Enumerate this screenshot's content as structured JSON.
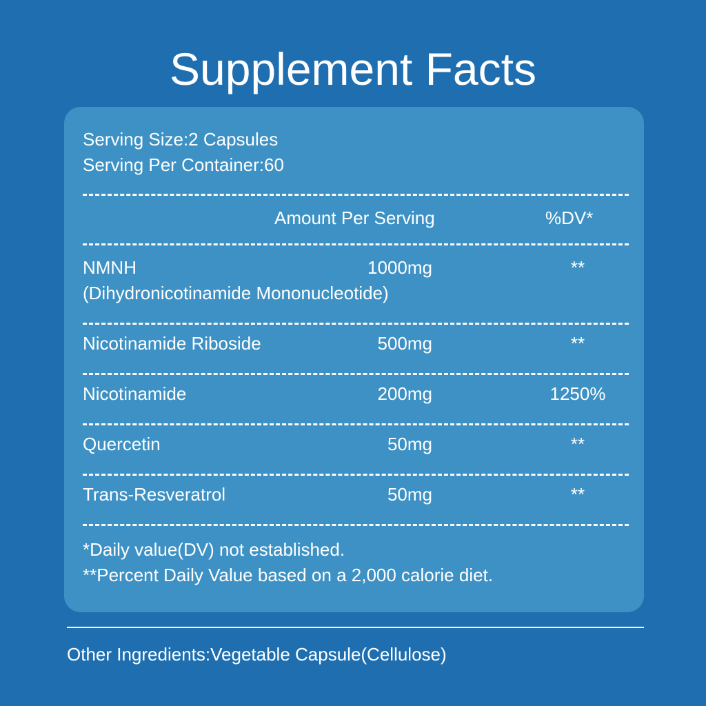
{
  "title": "Supplement Facts",
  "serving": [
    "Serving Size:2 Capsules",
    "Serving Per Container:60"
  ],
  "table": {
    "header": [
      "Amount Per Serving",
      "%DV*"
    ],
    "rows": [
      {
        "name": [
          "NMNH",
          "(Dihydronicotinamide Mononucleotide)"
        ],
        "amount": "1000mg",
        "dv": "**"
      },
      {
        "name": [
          "Nicotinamide Riboside"
        ],
        "amount": "500mg",
        "dv": "**"
      },
      {
        "name": [
          "Nicotinamide"
        ],
        "amount": "200mg",
        "dv": "1250%"
      },
      {
        "name": [
          "Quercetin"
        ],
        "amount": "50mg",
        "dv": "**"
      },
      {
        "name": [
          "Trans-Resveratrol"
        ],
        "amount": "50mg",
        "dv": "**"
      }
    ]
  },
  "footnotes": [
    "*Daily value(DV) not established.",
    "**Percent Daily Value based on a 2,000 calorie diet."
  ],
  "other": "Other Ingredients:Vegetable Capsule(Cellulose)"
}
